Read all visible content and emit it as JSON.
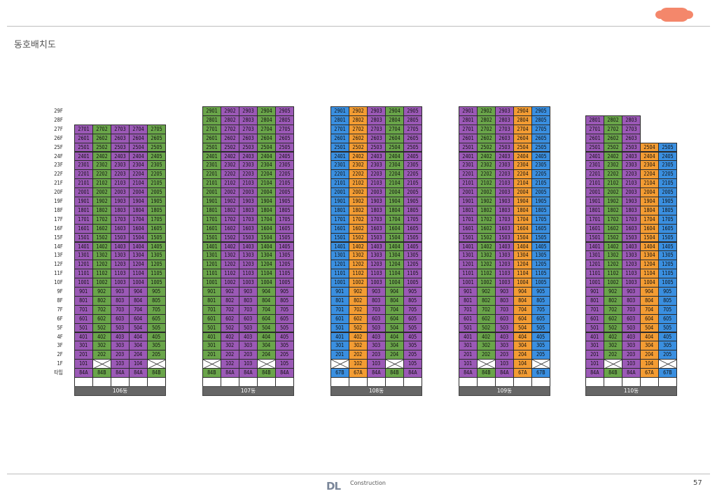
{
  "page": {
    "title": "동호배치도",
    "page_number": "57",
    "logo_text": "DL",
    "logo_sub": "Construction"
  },
  "colors": {
    "84A": "#9b59b6",
    "84B": "#6aa54a",
    "67A": "#f39c33",
    "67B": "#3a8fe0"
  },
  "floor_labels": [
    "29F",
    "28F",
    "27F",
    "26F",
    "25F",
    "24F",
    "23F",
    "22F",
    "21F",
    "20F",
    "19F",
    "18F",
    "17F",
    "16F",
    "15F",
    "14F",
    "13F",
    "12F",
    "11F",
    "10F",
    "9F",
    "8F",
    "7F",
    "6F",
    "5F",
    "4F",
    "3F",
    "2F",
    "1F",
    "타입"
  ],
  "buildings": [
    {
      "name": "106동",
      "top_floor": [
        27,
        27,
        27,
        27,
        27
      ],
      "types": [
        "84A",
        "84B",
        "84A",
        "84A",
        "84B"
      ],
      "ground": [
        "101",
        "X",
        "103",
        "104",
        "X"
      ]
    },
    {
      "name": "107동",
      "top_floor": [
        29,
        29,
        29,
        29,
        29
      ],
      "types": [
        "84B",
        "84A",
        "84A",
        "84B",
        "84A"
      ],
      "ground": [
        "X",
        "102",
        "103",
        "X",
        "105"
      ]
    },
    {
      "name": "108동",
      "top_floor": [
        29,
        29,
        29,
        29,
        29
      ],
      "types": [
        "67B",
        "67A",
        "84A",
        "84B",
        "84A"
      ],
      "ground": [
        "X",
        "102",
        "103",
        "X",
        "105"
      ]
    },
    {
      "name": "109동",
      "top_floor": [
        29,
        29,
        29,
        29,
        29
      ],
      "types": [
        "84A",
        "84B",
        "84A",
        "67A",
        "67B"
      ],
      "ground": [
        "101",
        "X",
        "103",
        "104",
        "X"
      ]
    },
    {
      "name": "110동",
      "top_floor": [
        28,
        28,
        28,
        25,
        25
      ],
      "types": [
        "84A",
        "84B",
        "84A",
        "67A",
        "67B"
      ],
      "ground": [
        "101",
        "X",
        "103",
        "104",
        "X"
      ]
    }
  ]
}
